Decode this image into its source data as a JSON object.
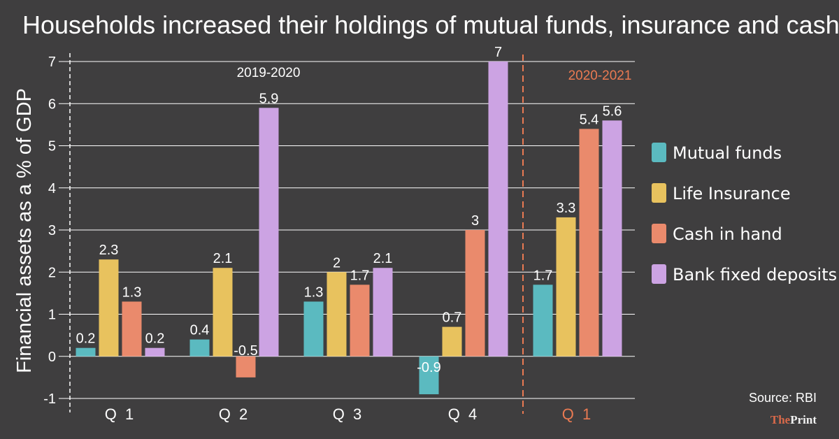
{
  "chart_data": {
    "type": "bar",
    "title": "Households increased their holdings of mutual funds, insurance and cash",
    "ylabel": "Financial assets as a % of GDP",
    "xlabel": "",
    "ylim": [
      -1,
      7
    ],
    "yticks": [
      -1,
      0,
      1,
      2,
      3,
      4,
      5,
      6,
      7
    ],
    "grid": true,
    "legend_position": "right",
    "categories": [
      "Q 1",
      "Q 2",
      "Q 3",
      "Q 4",
      "Q 1"
    ],
    "periods": [
      {
        "label": "2019-2020",
        "categories": [
          0,
          1,
          2,
          3
        ]
      },
      {
        "label": "2020-2021",
        "categories": [
          4
        ],
        "highlight": true
      }
    ],
    "series": [
      {
        "name": "Mutual funds",
        "color": "#5bbac0",
        "values": [
          0.2,
          0.4,
          1.3,
          -0.9,
          1.7
        ]
      },
      {
        "name": "Life Insurance",
        "color": "#e8c25e",
        "values": [
          2.3,
          2.1,
          2,
          0.7,
          3.3
        ]
      },
      {
        "name": "Cash in hand",
        "color": "#ea8a6c",
        "values": [
          1.3,
          -0.5,
          1.7,
          3,
          5.4
        ]
      },
      {
        "name": "Bank fixed deposits",
        "color": "#cca3e3",
        "values": [
          0.2,
          5.9,
          2.1,
          7,
          5.6
        ]
      }
    ],
    "highlight_color": "#ea7a52"
  },
  "source": "Source: RBI",
  "brand": {
    "part1": "The",
    "part2": "Print",
    "color1": "#d9694a",
    "color2": "#f1f1f1"
  }
}
